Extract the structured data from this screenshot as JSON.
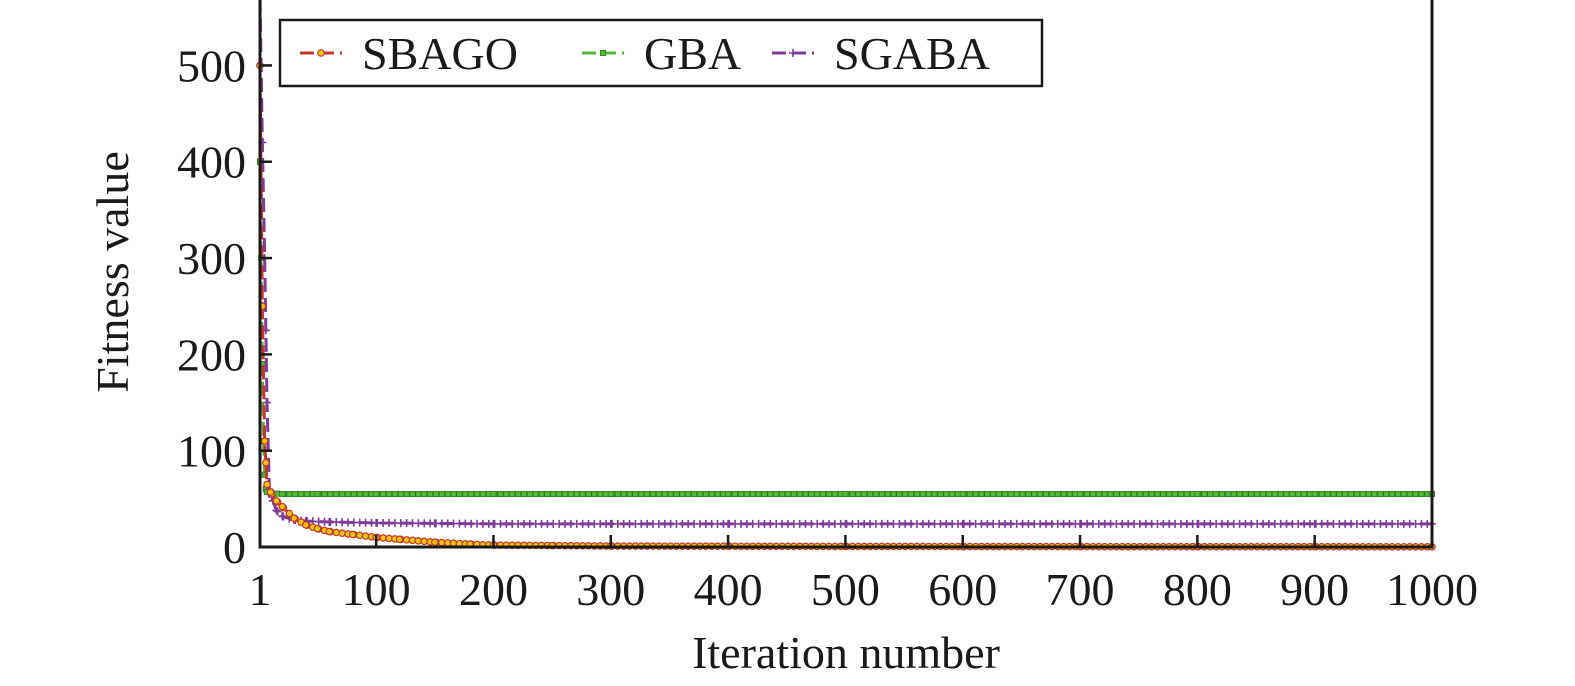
{
  "chart_data": {
    "type": "line",
    "title": "",
    "xlabel": "Iteration number",
    "ylabel": "Fitness value",
    "xlim": [
      1,
      1000
    ],
    "ylim": [
      0,
      570
    ],
    "x_ticks": [
      "1",
      "100",
      "200",
      "300",
      "400",
      "500",
      "600",
      "700",
      "800",
      "900",
      "1000"
    ],
    "y_ticks": [
      "0",
      "100",
      "200",
      "300",
      "400",
      "500"
    ],
    "grid": false,
    "legend_position": "top-left",
    "series": [
      {
        "name": "SBAGO",
        "color": "#c0392b",
        "marker_fill": "#f1c40f",
        "marker": "circle",
        "x": [
          1,
          3,
          5,
          7,
          10,
          15,
          20,
          30,
          40,
          50,
          60,
          80,
          100,
          120,
          150,
          180,
          200,
          250,
          300,
          400,
          500,
          600,
          700,
          800,
          900,
          1000
        ],
        "y": [
          500,
          250,
          110,
          65,
          57,
          48,
          42,
          30,
          23,
          19,
          16,
          13,
          10,
          8,
          5,
          3,
          2,
          1.5,
          1,
          0.8,
          0.6,
          0.5,
          0.4,
          0.3,
          0.3,
          0.2
        ]
      },
      {
        "name": "GBA",
        "color": "#52b83a",
        "marker_fill": "#52b83a",
        "marker": "square",
        "x": [
          1,
          2,
          3,
          4,
          5,
          6,
          7,
          10,
          20,
          50,
          100,
          200,
          300,
          400,
          500,
          600,
          700,
          800,
          900,
          1000
        ],
        "y": [
          400,
          300,
          190,
          110,
          75,
          60,
          57,
          56,
          55,
          55,
          55,
          55,
          55,
          55,
          55,
          55,
          55,
          55,
          55,
          55
        ]
      },
      {
        "name": "SGABA",
        "color": "#7d3c98",
        "marker_fill": "#7d3c98",
        "marker": "plus",
        "x": [
          1,
          3,
          5,
          7,
          9,
          12,
          15,
          20,
          30,
          40,
          60,
          100,
          150,
          200,
          300,
          400,
          500,
          600,
          700,
          800,
          900,
          1000
        ],
        "y": [
          570,
          420,
          300,
          150,
          60,
          48,
          38,
          32,
          28,
          27,
          26,
          25,
          24.5,
          24,
          24,
          24,
          24,
          24,
          24,
          24,
          24,
          24
        ]
      }
    ]
  }
}
